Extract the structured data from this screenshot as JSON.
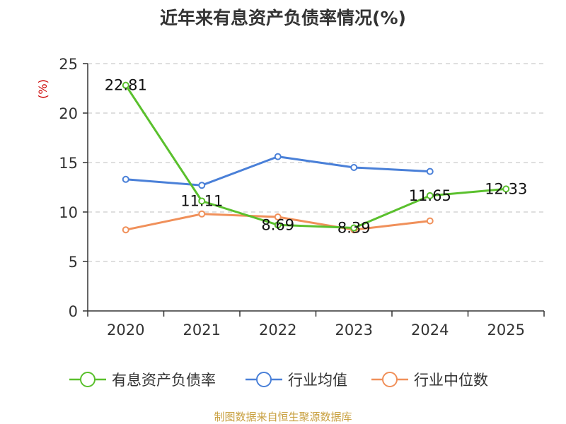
{
  "colors": {
    "company": "#5ac02d",
    "mean": "#4a80d8",
    "median": "#f0905a",
    "axis": "#333333",
    "grid": "#cccccc",
    "unit": "#cc0000",
    "source": "#c8a040"
  },
  "chart_data": {
    "type": "line",
    "title": "近年来有息资产负债率情况(%)",
    "ylabel": "(%)",
    "xlabel": "",
    "categories": [
      "2020",
      "2021",
      "2022",
      "2023",
      "2024",
      "2025"
    ],
    "ylim": [
      0,
      25
    ],
    "yticks": [
      0,
      5,
      10,
      15,
      20,
      25
    ],
    "grid": true,
    "legend_position": "bottom",
    "series": [
      {
        "name": "有息资产负债率",
        "color_key": "company",
        "values": [
          22.81,
          11.11,
          8.69,
          8.39,
          11.65,
          12.33
        ],
        "labels": [
          "22.81",
          "11.11",
          "8.69",
          "8.39",
          "11.65",
          "12.33"
        ]
      },
      {
        "name": "行业均值",
        "color_key": "mean",
        "values": [
          13.3,
          12.7,
          15.6,
          14.5,
          14.1,
          null
        ]
      },
      {
        "name": "行业中位数",
        "color_key": "median",
        "values": [
          8.2,
          9.8,
          9.5,
          8.2,
          9.1,
          null
        ]
      }
    ],
    "source": "制图数据来自恒生聚源数据库"
  }
}
